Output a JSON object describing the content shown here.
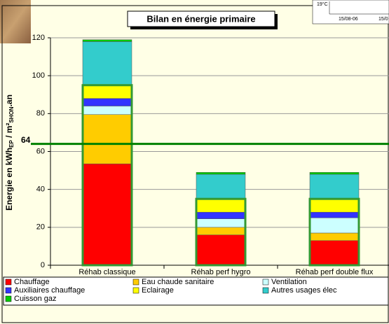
{
  "chart_data": {
    "type": "stacked_bar",
    "title": "Bilan en énergie primaire",
    "ylabel": {
      "main": "Energie en kWh",
      "sub1": "EP",
      "mid": " / m²",
      "sub2": "SHON",
      "end": ".an"
    },
    "categories": [
      "Réhab classique",
      "Réhab perf hygro",
      "Réhab perf double flux"
    ],
    "series": [
      {
        "name": "Chauffage",
        "color": "#ff0000",
        "values": [
          53.5,
          16,
          13
        ]
      },
      {
        "name": "Eau chaude sanitaire",
        "color": "#ffcc00",
        "values": [
          26,
          4,
          4
        ]
      },
      {
        "name": "Ventilation",
        "color": "#ccffff",
        "values": [
          4.5,
          4.5,
          8
        ]
      },
      {
        "name": "Auxiliaires chauffage",
        "color": "#3333ff",
        "values": [
          4,
          3.5,
          3
        ]
      },
      {
        "name": "Eclairage",
        "color": "#ffff00",
        "values": [
          7,
          7,
          7
        ]
      },
      {
        "name": "Autres usages élec",
        "color": "#33cccc",
        "values": [
          23,
          13,
          13
        ]
      },
      {
        "name": "Cuisson gaz",
        "color": "#00cc00",
        "values": [
          1,
          1,
          1
        ]
      }
    ],
    "outlined_series_count": 5,
    "outline_color": "#339933",
    "reference_line": {
      "value": 64,
      "color": "#008000"
    },
    "ylim": [
      0,
      120
    ],
    "yticks": [
      0,
      20,
      40,
      60,
      80,
      100,
      120
    ],
    "grid": true,
    "background": "#ffffe6"
  },
  "inset": {
    "labels": [
      "19°C",
      "15/08-06",
      "15/0"
    ]
  }
}
